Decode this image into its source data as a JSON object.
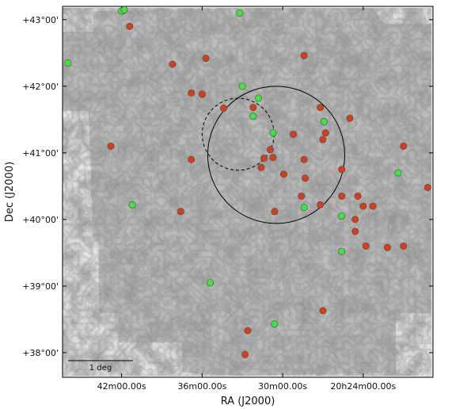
{
  "chart_data": {
    "type": "scatter",
    "title": "",
    "xlabel": "RA (J2000)",
    "ylabel": "Dec (J2000)",
    "x_ticks": [
      {
        "label": "42m00.00s",
        "ra_deg": 310.5
      },
      {
        "label": "36m00.00s",
        "ra_deg": 309.0
      },
      {
        "label": "30m00.00s",
        "ra_deg": 307.5
      },
      {
        "label": "20h24m00.00s",
        "ra_deg": 306.0
      }
    ],
    "y_ticks": [
      {
        "label": "+43°00'",
        "dec_deg": 43.0
      },
      {
        "label": "+42°00'",
        "dec_deg": 42.0
      },
      {
        "label": "+41°00'",
        "dec_deg": 41.0
      },
      {
        "label": "+40°00'",
        "dec_deg": 40.0
      },
      {
        "label": "+39°00'",
        "dec_deg": 39.0
      },
      {
        "label": "+38°00'",
        "dec_deg": 38.0
      }
    ],
    "xlim": [
      311.6,
      304.7
    ],
    "ylim": [
      37.63,
      43.2
    ],
    "scale_bar": {
      "label": "1 deg",
      "length_deg": 1.0
    },
    "circles": [
      {
        "ra": 307.62,
        "dec": 40.97,
        "radius_deg": 1.03,
        "style": "solid"
      },
      {
        "ra": 308.33,
        "dec": 41.28,
        "radius_deg": 0.54,
        "style": "dashed"
      }
    ],
    "series": [
      {
        "color": "#d0401f",
        "points": [
          [
            310.35,
            42.9
          ],
          [
            309.55,
            42.33
          ],
          [
            308.93,
            42.42
          ],
          [
            307.1,
            42.46
          ],
          [
            309.2,
            41.9
          ],
          [
            309.0,
            41.88
          ],
          [
            310.7,
            41.1
          ],
          [
            309.2,
            40.9
          ],
          [
            308.6,
            41.67
          ],
          [
            308.05,
            41.68
          ],
          [
            306.8,
            41.68
          ],
          [
            306.75,
            41.2
          ],
          [
            306.7,
            41.3
          ],
          [
            307.3,
            41.28
          ],
          [
            307.73,
            41.05
          ],
          [
            307.85,
            40.92
          ],
          [
            307.68,
            40.93
          ],
          [
            307.9,
            40.78
          ],
          [
            307.1,
            40.9
          ],
          [
            307.08,
            40.62
          ],
          [
            307.48,
            40.68
          ],
          [
            306.4,
            40.75
          ],
          [
            307.15,
            40.35
          ],
          [
            306.8,
            40.22
          ],
          [
            307.65,
            40.12
          ],
          [
            309.4,
            40.12
          ],
          [
            306.15,
            40.0
          ],
          [
            306.15,
            39.82
          ],
          [
            306.4,
            40.35
          ],
          [
            306.1,
            40.35
          ],
          [
            306.0,
            40.2
          ],
          [
            305.82,
            40.2
          ],
          [
            305.95,
            39.6
          ],
          [
            305.55,
            39.58
          ],
          [
            305.25,
            39.6
          ],
          [
            305.25,
            41.1
          ],
          [
            304.8,
            40.48
          ],
          [
            306.25,
            41.52
          ],
          [
            308.15,
            38.33
          ],
          [
            308.2,
            37.97
          ],
          [
            306.75,
            38.63
          ]
        ]
      },
      {
        "color": "#44e044",
        "points": [
          [
            310.5,
            43.13
          ],
          [
            310.45,
            43.15
          ],
          [
            308.3,
            43.1
          ],
          [
            311.5,
            42.35
          ],
          [
            308.25,
            42.0
          ],
          [
            307.95,
            41.82
          ],
          [
            308.05,
            41.55
          ],
          [
            307.68,
            41.3
          ],
          [
            306.73,
            41.47
          ],
          [
            305.35,
            40.7
          ],
          [
            306.4,
            40.05
          ],
          [
            307.1,
            40.18
          ],
          [
            310.3,
            40.22
          ],
          [
            306.4,
            39.52
          ],
          [
            308.85,
            39.05
          ],
          [
            307.65,
            38.43
          ]
        ]
      }
    ]
  }
}
